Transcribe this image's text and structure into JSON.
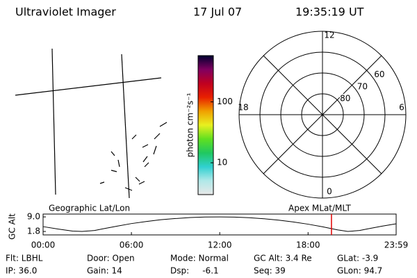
{
  "header": {
    "title": "Ultraviolet Imager",
    "date": "17 Jul 07",
    "time": "19:35:19 UT"
  },
  "colorbar": {
    "label": "photon cm⁻²s⁻¹",
    "scale": "log",
    "ylim": [
      3,
      575
    ],
    "yticks": [
      10,
      100
    ],
    "colors": [
      "#e8e8e8",
      "#b0e8e8",
      "#30d0d0",
      "#20c860",
      "#60e020",
      "#e8f020",
      "#f0a000",
      "#e82000",
      "#c00020",
      "#800060",
      "#000030"
    ]
  },
  "polar": {
    "mlt_ticks": [
      12,
      18,
      6,
      0
    ],
    "lat_lim": [
      50,
      90
    ],
    "lat_ticks": [
      60,
      70,
      80
    ]
  },
  "orbit": {
    "left_label": "Geographic Lat/Lon",
    "right_label": "Apex MLat/MLT",
    "y_label": "GC Alt",
    "xlim": [
      0,
      23.983
    ],
    "ylim": [
      0.1,
      10.4
    ],
    "xticks": [
      {
        "value": 0,
        "label": "00:00"
      },
      {
        "value": 6,
        "label": "06:00"
      },
      {
        "value": 12,
        "label": "12:00"
      },
      {
        "value": 18,
        "label": "18:00"
      },
      {
        "value": 23.983,
        "label": "23:59"
      }
    ],
    "yticks": [
      {
        "value": 9,
        "label": "9.0"
      },
      1.8
    ],
    "x": [
      0,
      1,
      2,
      2.65,
      3.5,
      4,
      5,
      6,
      7,
      8,
      9,
      10,
      11,
      12,
      13,
      14,
      15,
      16,
      17,
      18,
      19,
      20,
      20.7,
      21.5,
      22,
      23,
      23.983
    ],
    "values": [
      4.2,
      3.0,
      2.0,
      1.8,
      2.3,
      3.0,
      4.4,
      5.7,
      6.7,
      7.6,
      8.2,
      8.7,
      8.95,
      9.0,
      8.9,
      8.6,
      8.1,
      7.4,
      6.5,
      5.4,
      4.1,
      2.6,
      1.8,
      2.3,
      3.0,
      4.4,
      5.6
    ],
    "marker_time": 19.589,
    "marker_color": "#e00000"
  },
  "footer": [
    [
      "Flt: LBHL",
      "IP: 36.0"
    ],
    [
      "Door: Open",
      "Gain: 14"
    ],
    [
      "Mode: Normal",
      "Dsp:     -6.1"
    ],
    [
      "GC Alt: 3.4 Re",
      "Seq: 39"
    ],
    [
      "GLat: -3.9",
      "GLon: 94.7"
    ]
  ]
}
